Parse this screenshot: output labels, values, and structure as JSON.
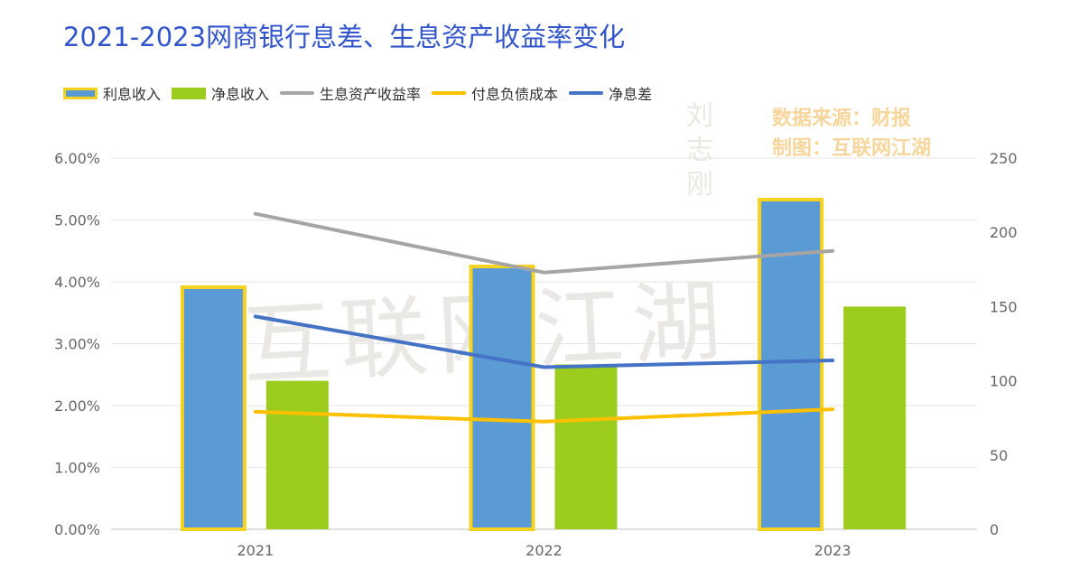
{
  "title": "2021-2023网商银行息差、生息资产收益率变化",
  "source_lines": [
    "数据来源：财报",
    "制图：互联网江湖"
  ],
  "watermark": {
    "text": "互联网江湖",
    "seal": "刘志刚"
  },
  "legend": [
    {
      "name": "利息收入",
      "kind": "bar",
      "color": "#5b9bd5",
      "border": "#f5d21e"
    },
    {
      "name": "净息收入",
      "kind": "bar",
      "color": "#9bcc1e"
    },
    {
      "name": "生息资产收益率",
      "kind": "line",
      "color": "#a5a5a5"
    },
    {
      "name": "付息负债成本",
      "kind": "line",
      "color": "#ffc000"
    },
    {
      "name": "净息差",
      "kind": "line",
      "color": "#4472c4"
    }
  ],
  "chart_data": {
    "type": "bar",
    "categories": [
      "2021",
      "2022",
      "2023"
    ],
    "left_axis": {
      "ticks": [
        "0.00%",
        "1.00%",
        "2.00%",
        "3.00%",
        "4.00%",
        "5.00%",
        "6.00%"
      ],
      "range": [
        0,
        6
      ]
    },
    "right_axis": {
      "ticks": [
        "0",
        "50",
        "100",
        "150",
        "200",
        "250"
      ],
      "range": [
        0,
        250
      ]
    },
    "grid": true,
    "series": [
      {
        "name": "利息收入",
        "type": "bar",
        "axis": "right",
        "values": [
          163,
          177,
          222
        ],
        "color": "#5b9bd5",
        "border": "#f5d21e"
      },
      {
        "name": "净息收入",
        "type": "bar",
        "axis": "right",
        "values": [
          100,
          111,
          150
        ],
        "color": "#9bcc1e"
      },
      {
        "name": "生息资产收益率",
        "type": "line",
        "axis": "left",
        "values": [
          5.1,
          4.15,
          4.5
        ],
        "color": "#a5a5a5"
      },
      {
        "name": "付息负债成本",
        "type": "line",
        "axis": "left",
        "values": [
          1.9,
          1.74,
          1.94
        ],
        "color": "#ffc000"
      },
      {
        "name": "净息差",
        "type": "line",
        "axis": "left",
        "values": [
          3.44,
          2.62,
          2.73
        ],
        "color": "#4472c4"
      }
    ]
  }
}
